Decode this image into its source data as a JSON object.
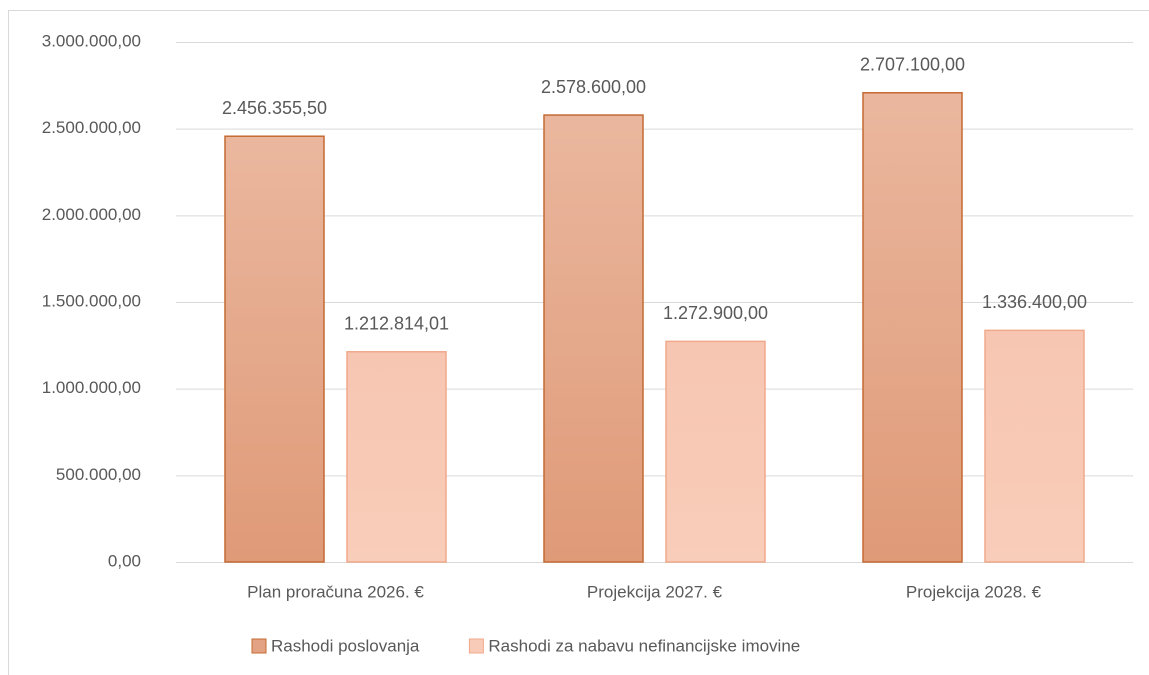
{
  "chart_data": {
    "type": "bar",
    "categories": [
      "Plan proračuna 2026. €",
      "Projekcija 2027. €",
      "Projekcija 2028. €"
    ],
    "series": [
      {
        "name": "Rashodi poslovanja",
        "color": "#e3a283",
        "values": [
          2456355.5,
          2578600,
          2707100
        ],
        "value_labels": [
          "2.456.355,50",
          "2.578.600,00",
          "2.707.100,00"
        ]
      },
      {
        "name": "Rashodi za nabavu nefinancijske imovine",
        "color": "#f8cbb8",
        "values": [
          1212814.01,
          1272900,
          1336400
        ],
        "value_labels": [
          "1.212.814,01",
          "1.272.900,00",
          "1.336.400,00"
        ]
      }
    ],
    "ylim": [
      0,
      3000000
    ],
    "yticks": [
      {
        "value": 0,
        "label": "0,00"
      },
      {
        "value": 500000,
        "label": "500.000,00"
      },
      {
        "value": 1000000,
        "label": "1.000.000,00"
      },
      {
        "value": 1500000,
        "label": "1.500.000,00"
      },
      {
        "value": 2000000,
        "label": "2.000.000,00"
      },
      {
        "value": 2500000,
        "label": "2.500.000,00"
      },
      {
        "value": 3000000,
        "label": "3.000.000,00"
      }
    ],
    "grid": true,
    "legend": "bottom"
  }
}
